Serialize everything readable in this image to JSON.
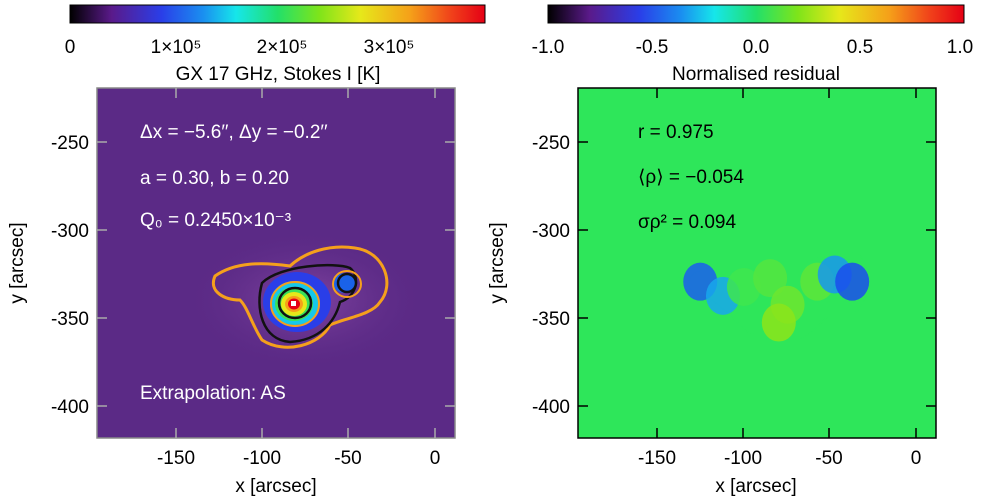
{
  "chart_data": [
    {
      "type": "heatmap",
      "title": "GX 17 GHz, Stokes I [K]",
      "colorbar": {
        "colormap": "rainbow",
        "range": [
          0,
          390000
        ],
        "tick_values": [
          0,
          100000,
          200000,
          300000
        ],
        "tick_labels": [
          "0",
          "1×10⁵",
          "2×10⁵",
          "3×10⁵"
        ]
      },
      "xlabel": "x [arcsec]",
      "ylabel": "y [arcsec]",
      "xlim": [
        -195,
        10
      ],
      "ylim": [
        -420,
        -223
      ],
      "xticks": [
        -150,
        -100,
        -50,
        0
      ],
      "xtick_labels": [
        "-150",
        "-100",
        "-50",
        "0"
      ],
      "yticks": [
        -250,
        -300,
        -350,
        -400
      ],
      "ytick_labels": [
        "-250",
        "-300",
        "-350",
        "-400"
      ],
      "annotations": [
        "Δx = −5.6′′, Δy = −0.2′′",
        "a =  0.30, b =  0.20",
        "Q₀ =   0.2450×10⁻³",
        "Extrapolation: AS"
      ],
      "background_color": "#5b2a86",
      "source_peak": {
        "x": -82,
        "y": -343,
        "value": 390000
      },
      "secondary_source": {
        "x": -50,
        "y": -331
      },
      "contour_color": "#f59a1c"
    },
    {
      "type": "heatmap",
      "title": "Normalised residual",
      "colorbar": {
        "colormap": "rainbow",
        "range": [
          -1.0,
          1.0
        ],
        "tick_values": [
          -1.0,
          -0.5,
          0.0,
          0.5,
          1.0
        ],
        "tick_labels": [
          "-1.0",
          "-0.5",
          "0.0",
          "0.5",
          "1.0"
        ]
      },
      "xlabel": "x [arcsec]",
      "ylabel": "y [arcsec]",
      "xlim": [
        -195,
        10
      ],
      "ylim": [
        -420,
        -223
      ],
      "xticks": [
        -150,
        -100,
        -50,
        0
      ],
      "xtick_labels": [
        "-150",
        "-100",
        "-50",
        "0"
      ],
      "yticks": [
        -250,
        -300,
        -350,
        -400
      ],
      "ytick_labels": [
        "-250",
        "-300",
        "-350",
        "-400"
      ],
      "annotations": [
        "r = 0.975",
        "⟨ρ⟩ = −0.054",
        "σρ² =  0.094"
      ],
      "background_value": 0.0,
      "patch_values": [
        {
          "x": -125,
          "y": -332,
          "value": -0.55
        },
        {
          "x": -112,
          "y": -340,
          "value": -0.3
        },
        {
          "x": -100,
          "y": -335,
          "value": 0.05
        },
        {
          "x": -85,
          "y": -330,
          "value": 0.12
        },
        {
          "x": -75,
          "y": -345,
          "value": 0.2
        },
        {
          "x": -80,
          "y": -355,
          "value": 0.3
        },
        {
          "x": -58,
          "y": -332,
          "value": 0.15
        },
        {
          "x": -48,
          "y": -328,
          "value": -0.35
        },
        {
          "x": -38,
          "y": -332,
          "value": -0.7
        }
      ]
    }
  ]
}
